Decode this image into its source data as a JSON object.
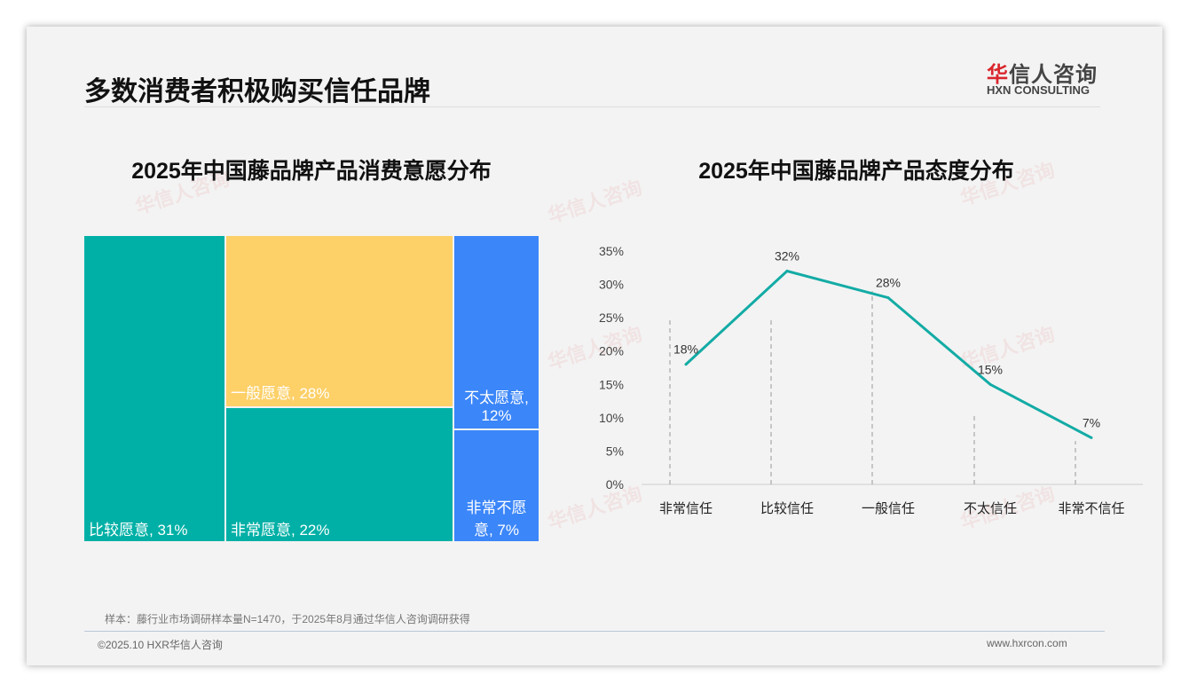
{
  "header": {
    "title": "多数消费者积极购买信任品牌",
    "logo_cn": "华信人咨询",
    "logo_cn_red": "华",
    "logo_cn_rest": "信人咨询",
    "logo_en": "HXN CONSULTING"
  },
  "footer": {
    "note": "样本：藤行业市场调研样本量N=1470，于2025年8月通过华信人咨询调研获得",
    "copyright": "©2025.10 HXR华信人咨询",
    "url": "www.hxrcon.com"
  },
  "colors": {
    "teal": "#00b0a6",
    "yellow": "#fdd068",
    "blue": "#3b86f9",
    "line": "#13aba5"
  },
  "chart_data": [
    {
      "type": "treemap",
      "title": "2025年中国藤品牌产品消费意愿分布",
      "items": [
        {
          "label": "比较愿意, 31%",
          "name": "比较愿意",
          "value": 31
        },
        {
          "label": "一般愿意, 28%",
          "name": "一般愿意",
          "value": 28
        },
        {
          "label": "非常愿意, 22%",
          "name": "非常愿意",
          "value": 22
        },
        {
          "label": "不太愿意, 12%",
          "name": "不太愿意",
          "value": 12
        },
        {
          "label": "非常不愿意, 7%",
          "name": "非常不愿意",
          "value": 7
        }
      ]
    },
    {
      "type": "line",
      "title": "2025年中国藤品牌产品态度分布",
      "categories": [
        "非常信任",
        "比较信任",
        "一般信任",
        "不太信任",
        "非常不信任"
      ],
      "values": [
        18,
        32,
        28,
        15,
        7
      ],
      "labels": [
        "18%",
        "32%",
        "28%",
        "15%",
        "7%"
      ],
      "yticks": [
        "0%",
        "5%",
        "10%",
        "15%",
        "20%",
        "25%",
        "30%",
        "35%"
      ],
      "ylim": [
        0,
        35
      ]
    }
  ]
}
